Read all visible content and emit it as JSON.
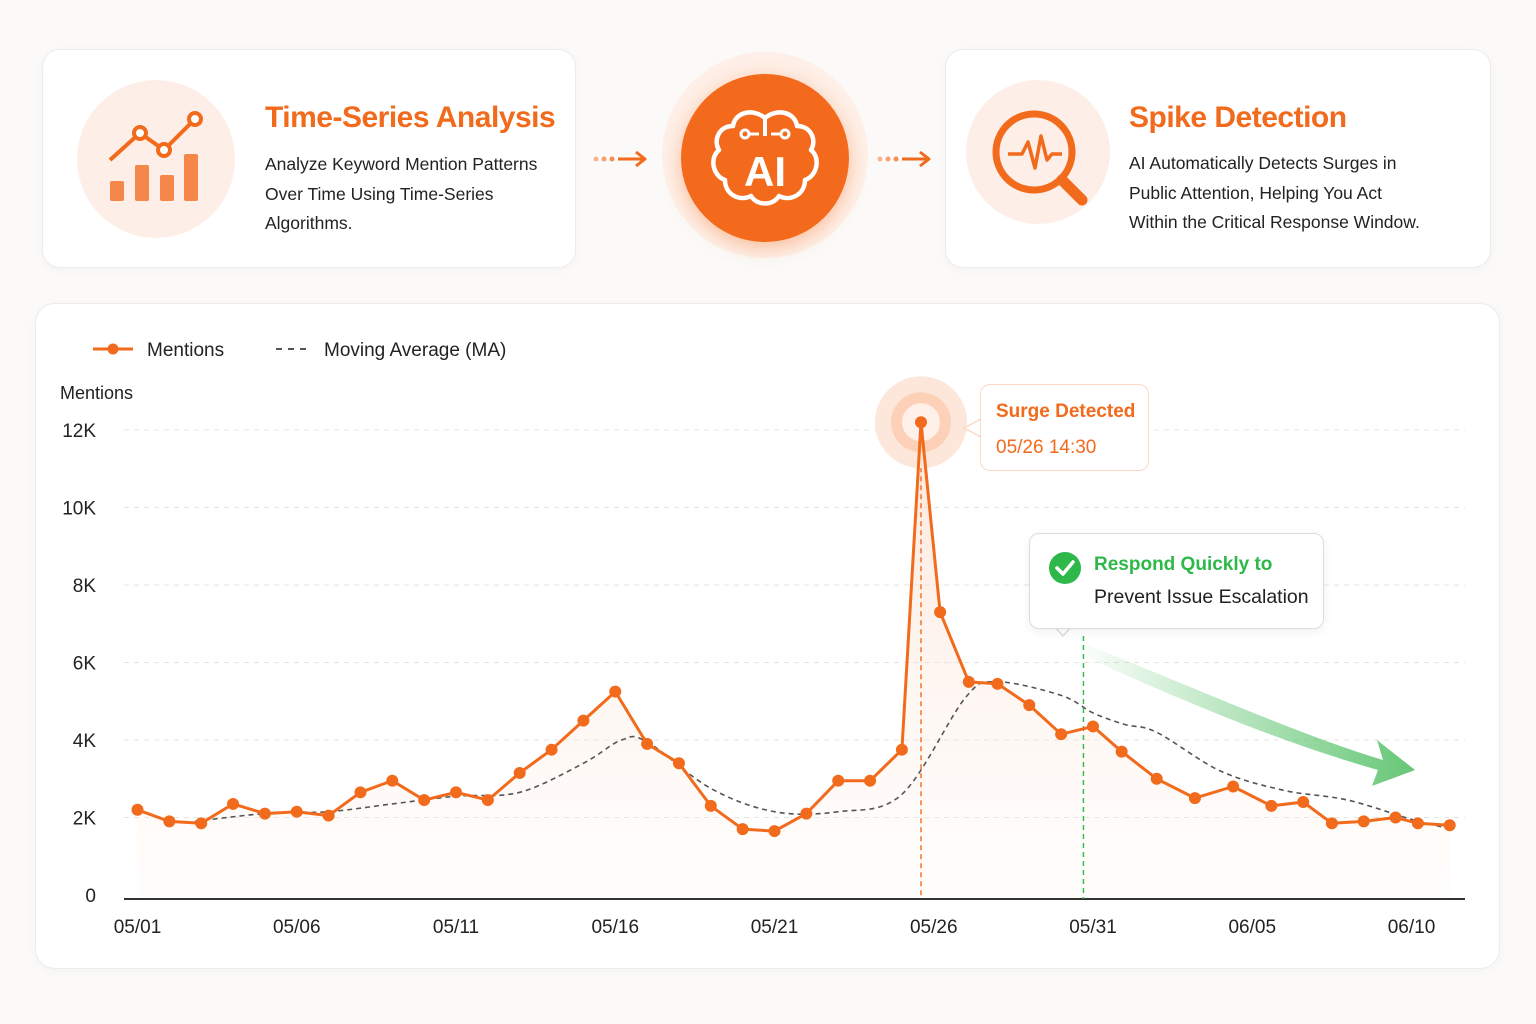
{
  "steps": {
    "left": {
      "title": "Time-Series Analysis",
      "lines": [
        "Analyze Keyword Mention Patterns",
        "Over Time Using Time-Series",
        "Algorithms."
      ],
      "icon": "bar-trend-chart-icon"
    },
    "center": {
      "label": "AI",
      "icon": "ai-brain-icon"
    },
    "right": {
      "title": "Spike Detection",
      "lines": [
        "AI Automatically Detects Surges in",
        "Public Attention, Helping You Act",
        "Within the Critical Response Window."
      ],
      "icon": "magnifier-pulse-icon"
    }
  },
  "colors": {
    "accent": "#f26a1b",
    "ma_line": "#555555",
    "green": "#2fb84a"
  },
  "annotations": {
    "surge": {
      "title": "Surge Detected",
      "time": "05/26 14:30"
    },
    "respond": {
      "line1": "Respond Quickly to",
      "line2": "Prevent Issue Escalation"
    }
  },
  "chart_data": {
    "type": "line",
    "ylabel": "Mentions",
    "ylim": [
      0,
      12000
    ],
    "yticks": [
      {
        "v": 0,
        "label": "0"
      },
      {
        "v": 2000,
        "label": "2K"
      },
      {
        "v": 4000,
        "label": "4K"
      },
      {
        "v": 6000,
        "label": "6K"
      },
      {
        "v": 8000,
        "label": "8K"
      },
      {
        "v": 10000,
        "label": "10K"
      },
      {
        "v": 12000,
        "label": "12K"
      }
    ],
    "xticks": [
      {
        "i": 0,
        "label": "05/01"
      },
      {
        "i": 5,
        "label": "05/06"
      },
      {
        "i": 10,
        "label": "05/11"
      },
      {
        "i": 15,
        "label": "05/16"
      },
      {
        "i": 20,
        "label": "05/21"
      },
      {
        "i": 25,
        "label": "05/26"
      },
      {
        "i": 30,
        "label": "05/31"
      },
      {
        "i": 35,
        "label": "06/05"
      },
      {
        "i": 40,
        "label": "06/10"
      }
    ],
    "grid": true,
    "legend": "top-left",
    "series": [
      {
        "name": "Mentions",
        "x": [
          0,
          1,
          2,
          3,
          4,
          5,
          6,
          7,
          8,
          9,
          10,
          11,
          12,
          13,
          14,
          15,
          16,
          17,
          18,
          19,
          20,
          21,
          22,
          23,
          24,
          24.6,
          25.2,
          26.1,
          27,
          28,
          29,
          30,
          30.9,
          32,
          33.2,
          34.4,
          35.6,
          36.6,
          37.5,
          38.5,
          39.5,
          40.2,
          41.2
        ],
        "values": [
          2200,
          1900,
          1850,
          2350,
          2100,
          2150,
          2050,
          2650,
          2950,
          2450,
          2650,
          2450,
          3150,
          3750,
          4500,
          5250,
          3900,
          3400,
          2300,
          1700,
          1650,
          2100,
          2950,
          2950,
          3750,
          12200,
          7300,
          5500,
          5450,
          4900,
          4150,
          4350,
          3700,
          3000,
          2500,
          2800,
          2300,
          2400,
          1850,
          1900,
          2000,
          1850,
          1800
        ]
      },
      {
        "name": "Moving Average (MA)",
        "style": "dashed",
        "x": [
          1.8,
          4,
          6,
          8,
          10,
          12,
          14,
          15.2,
          16,
          18,
          20,
          22,
          24,
          26,
          27,
          29,
          30,
          31,
          32,
          34,
          36,
          38,
          40,
          41
        ],
        "values": [
          1900,
          2100,
          2150,
          2350,
          2550,
          2650,
          3400,
          4000,
          3950,
          2750,
          2150,
          2150,
          2600,
          5100,
          5500,
          5150,
          4700,
          4400,
          4200,
          3200,
          2700,
          2450,
          1950,
          1750
        ]
      }
    ],
    "annotations": [
      {
        "i": 24.6,
        "label": "Surge Detected 05/26 14:30"
      },
      {
        "i": 29.7,
        "label": "Respond Quickly to Prevent Issue Escalation"
      }
    ]
  }
}
